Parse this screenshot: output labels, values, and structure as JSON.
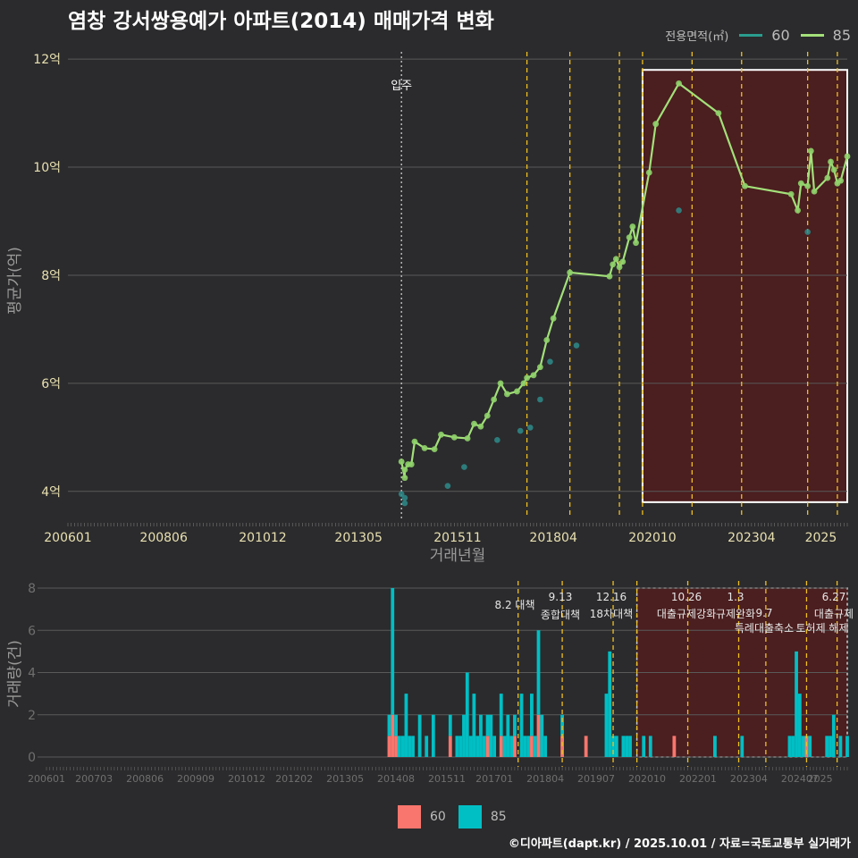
{
  "title": "염창 강서쌍용예가 아파트(2014) 매매가격 변화",
  "caption": "©디아파트(dapt.kr) / 2025.10.01 / 자료=국토교통부 실거래가",
  "colors": {
    "bg": "#2b2b2d",
    "s60_line": "#2a9d8f",
    "s85_line": "#a3e07a",
    "s85_point": "#8fd16a",
    "s60_point": "#2e8b8b",
    "bar60": "#f8766d",
    "bar85": "#00bfc4",
    "policy": "#f0c020",
    "highlight": "#5a1a1a"
  },
  "legend_top": {
    "title": "전용면적(㎡)",
    "items": [
      {
        "name": "60",
        "color": "#2a9d8f"
      },
      {
        "name": "85",
        "color": "#a3e07a"
      }
    ]
  },
  "legend_bottom": {
    "items": [
      {
        "name": "60",
        "color": "#f8766d"
      },
      {
        "name": "85",
        "color": "#00bfc4"
      }
    ]
  },
  "chart_data": [
    {
      "type": "line",
      "xlabel": "거래년월",
      "ylabel": "평균가(억)",
      "x_range": [
        "2006-01",
        "2025-09"
      ],
      "x_ticks": [
        "200601",
        "200806",
        "201012",
        "201305",
        "201511",
        "201804",
        "202010",
        "202304",
        "2025"
      ],
      "ylim": [
        3.5,
        12.3
      ],
      "y_ticks": [
        {
          "v": 4,
          "label": "4억"
        },
        {
          "v": 6,
          "label": "6억"
        },
        {
          "v": 8,
          "label": "8억"
        },
        {
          "v": 10,
          "label": "10억"
        },
        {
          "v": 12,
          "label": "12억"
        }
      ],
      "grid": true,
      "legend_position": "top-right",
      "annotations": [
        {
          "date": "2014-06",
          "label": "입주"
        }
      ],
      "policy_lines": [
        "2017-08",
        "2018-09",
        "2019-12",
        "2020-07",
        "2021-10",
        "2023-01",
        "2024-09",
        "2025-06"
      ],
      "highlight": {
        "from": "2020-07",
        "to": "2025-09",
        "y_from": 3.8,
        "y_to": 11.8
      },
      "series": [
        {
          "name": "60",
          "points": [
            {
              "x": "2014-06",
              "y": 3.95
            },
            {
              "x": "2014-07",
              "y": 3.78
            },
            {
              "x": "2014-07",
              "y": 3.88
            },
            {
              "x": "2015-08",
              "y": 4.1
            },
            {
              "x": "2016-01",
              "y": 4.45
            },
            {
              "x": "2016-11",
              "y": 4.95
            },
            {
              "x": "2017-06",
              "y": 5.12
            },
            {
              "x": "2017-09",
              "y": 5.18
            },
            {
              "x": "2017-12",
              "y": 5.7
            },
            {
              "x": "2018-03",
              "y": 6.4
            },
            {
              "x": "2018-11",
              "y": 6.7
            },
            {
              "x": "2021-06",
              "y": 9.2
            },
            {
              "x": "2024-09",
              "y": 8.8
            }
          ]
        },
        {
          "name": "85",
          "points": [
            {
              "x": "2014-06",
              "y": 4.55
            },
            {
              "x": "2014-07",
              "y": 4.25
            },
            {
              "x": "2014-07",
              "y": 4.4
            },
            {
              "x": "2014-08",
              "y": 4.5
            },
            {
              "x": "2014-09",
              "y": 4.5
            },
            {
              "x": "2014-10",
              "y": 4.92
            },
            {
              "x": "2015-01",
              "y": 4.8
            },
            {
              "x": "2015-04",
              "y": 4.78
            },
            {
              "x": "2015-06",
              "y": 5.05
            },
            {
              "x": "2015-10",
              "y": 5.0
            },
            {
              "x": "2016-02",
              "y": 4.98
            },
            {
              "x": "2016-04",
              "y": 5.25
            },
            {
              "x": "2016-06",
              "y": 5.2
            },
            {
              "x": "2016-08",
              "y": 5.4
            },
            {
              "x": "2016-10",
              "y": 5.7
            },
            {
              "x": "2016-12",
              "y": 6.0
            },
            {
              "x": "2017-02",
              "y": 5.8
            },
            {
              "x": "2017-05",
              "y": 5.85
            },
            {
              "x": "2017-07",
              "y": 6.0
            },
            {
              "x": "2017-08",
              "y": 6.1
            },
            {
              "x": "2017-10",
              "y": 6.15
            },
            {
              "x": "2017-12",
              "y": 6.3
            },
            {
              "x": "2018-02",
              "y": 6.8
            },
            {
              "x": "2018-04",
              "y": 7.2
            },
            {
              "x": "2018-09",
              "y": 8.05
            },
            {
              "x": "2019-09",
              "y": 7.98
            },
            {
              "x": "2019-10",
              "y": 8.2
            },
            {
              "x": "2019-11",
              "y": 8.3
            },
            {
              "x": "2019-12",
              "y": 8.15
            },
            {
              "x": "2020-01",
              "y": 8.25
            },
            {
              "x": "2020-03",
              "y": 8.7
            },
            {
              "x": "2020-04",
              "y": 8.9
            },
            {
              "x": "2020-05",
              "y": 8.6
            },
            {
              "x": "2020-09",
              "y": 9.9
            },
            {
              "x": "2020-11",
              "y": 10.8
            },
            {
              "x": "2021-06",
              "y": 11.55
            },
            {
              "x": "2022-06",
              "y": 11.0
            },
            {
              "x": "2023-02",
              "y": 9.65
            },
            {
              "x": "2024-04",
              "y": 9.5
            },
            {
              "x": "2024-06",
              "y": 9.2
            },
            {
              "x": "2024-07",
              "y": 9.7
            },
            {
              "x": "2024-09",
              "y": 9.65
            },
            {
              "x": "2024-10",
              "y": 10.3
            },
            {
              "x": "2024-11",
              "y": 9.55
            },
            {
              "x": "2025-03",
              "y": 9.8
            },
            {
              "x": "2025-04",
              "y": 10.1
            },
            {
              "x": "2025-05",
              "y": 9.95
            },
            {
              "x": "2025-06",
              "y": 9.7
            },
            {
              "x": "2025-07",
              "y": 9.75
            },
            {
              "x": "2025-09",
              "y": 10.2
            }
          ]
        }
      ]
    },
    {
      "type": "bar",
      "stacked": true,
      "ylabel": "거래량(건)",
      "ylim": [
        0,
        8
      ],
      "y_ticks": [
        0,
        2,
        4,
        6,
        8
      ],
      "x_ticks": [
        "200601",
        "200703",
        "200806",
        "200909",
        "201012",
        "201202",
        "201305",
        "201408",
        "201511",
        "201701",
        "201804",
        "201907",
        "202010",
        "202201",
        "202304",
        "202407",
        "2025"
      ],
      "policy_events": [
        {
          "date": "2017-08",
          "label": "8.2 대책"
        },
        {
          "date": "2018-09",
          "label": "9.13 종합대책"
        },
        {
          "date": "2019-12",
          "label": "12.16 18차대책"
        },
        {
          "date": "2020-07",
          "label": ""
        },
        {
          "date": "2021-10",
          "label": "10.26 대출규제강화"
        },
        {
          "date": "2023-01",
          "label": "1.3 규제완화"
        },
        {
          "date": "2023-09",
          "label": "9.7 특례대출축소"
        },
        {
          "date": "2024-09",
          "label": "토허제 해제"
        },
        {
          "date": "2025-06",
          "label": "6.27 대출규제"
        }
      ],
      "highlight": {
        "from": "2020-07",
        "to": "2025-09"
      },
      "series": [
        {
          "name": "60",
          "values": [
            {
              "x": "2014-06",
              "v": 1
            },
            {
              "x": "2014-07",
              "v": 2
            },
            {
              "x": "2014-08",
              "v": 1
            },
            {
              "x": "2015-12",
              "v": 1
            },
            {
              "x": "2016-11",
              "v": 1
            },
            {
              "x": "2017-03",
              "v": 1
            },
            {
              "x": "2017-07",
              "v": 1
            },
            {
              "x": "2017-12",
              "v": 1
            },
            {
              "x": "2018-02",
              "v": 2
            },
            {
              "x": "2018-09",
              "v": 1
            },
            {
              "x": "2019-04",
              "v": 1
            },
            {
              "x": "2021-06",
              "v": 1
            },
            {
              "x": "2024-09",
              "v": 1
            }
          ]
        },
        {
          "name": "85",
          "values": [
            {
              "x": "2014-06",
              "v": 1
            },
            {
              "x": "2014-07",
              "v": 6
            },
            {
              "x": "2014-08",
              "v": 1
            },
            {
              "x": "2014-09",
              "v": 1
            },
            {
              "x": "2014-10",
              "v": 1
            },
            {
              "x": "2014-11",
              "v": 3
            },
            {
              "x": "2014-12",
              "v": 1
            },
            {
              "x": "2015-01",
              "v": 1
            },
            {
              "x": "2015-03",
              "v": 2
            },
            {
              "x": "2015-05",
              "v": 1
            },
            {
              "x": "2015-07",
              "v": 2
            },
            {
              "x": "2015-12",
              "v": 1
            },
            {
              "x": "2016-02",
              "v": 1
            },
            {
              "x": "2016-03",
              "v": 1
            },
            {
              "x": "2016-04",
              "v": 2
            },
            {
              "x": "2016-05",
              "v": 4
            },
            {
              "x": "2016-06",
              "v": 1
            },
            {
              "x": "2016-07",
              "v": 3
            },
            {
              "x": "2016-08",
              "v": 1
            },
            {
              "x": "2016-09",
              "v": 2
            },
            {
              "x": "2016-10",
              "v": 1
            },
            {
              "x": "2016-11",
              "v": 1
            },
            {
              "x": "2016-12",
              "v": 2
            },
            {
              "x": "2017-01",
              "v": 1
            },
            {
              "x": "2017-03",
              "v": 2
            },
            {
              "x": "2017-04",
              "v": 1
            },
            {
              "x": "2017-05",
              "v": 2
            },
            {
              "x": "2017-06",
              "v": 1
            },
            {
              "x": "2017-07",
              "v": 1
            },
            {
              "x": "2017-09",
              "v": 3
            },
            {
              "x": "2017-10",
              "v": 1
            },
            {
              "x": "2017-11",
              "v": 1
            },
            {
              "x": "2017-12",
              "v": 2
            },
            {
              "x": "2018-01",
              "v": 1
            },
            {
              "x": "2018-02",
              "v": 4
            },
            {
              "x": "2018-03",
              "v": 2
            },
            {
              "x": "2018-04",
              "v": 1
            },
            {
              "x": "2018-09",
              "v": 1
            },
            {
              "x": "2019-10",
              "v": 3
            },
            {
              "x": "2019-11",
              "v": 5
            },
            {
              "x": "2019-12",
              "v": 1
            },
            {
              "x": "2020-01",
              "v": 1
            },
            {
              "x": "2020-03",
              "v": 1
            },
            {
              "x": "2020-04",
              "v": 1
            },
            {
              "x": "2020-05",
              "v": 1
            },
            {
              "x": "2020-09",
              "v": 1
            },
            {
              "x": "2020-11",
              "v": 1
            },
            {
              "x": "2022-06",
              "v": 1
            },
            {
              "x": "2023-02",
              "v": 1
            },
            {
              "x": "2024-04",
              "v": 1
            },
            {
              "x": "2024-05",
              "v": 1
            },
            {
              "x": "2024-06",
              "v": 5
            },
            {
              "x": "2024-07",
              "v": 3
            },
            {
              "x": "2024-08",
              "v": 1
            },
            {
              "x": "2024-10",
              "v": 1
            },
            {
              "x": "2025-03",
              "v": 1
            },
            {
              "x": "2025-04",
              "v": 1
            },
            {
              "x": "2025-05",
              "v": 2
            },
            {
              "x": "2025-07",
              "v": 1
            },
            {
              "x": "2025-09",
              "v": 1
            }
          ]
        }
      ]
    }
  ]
}
